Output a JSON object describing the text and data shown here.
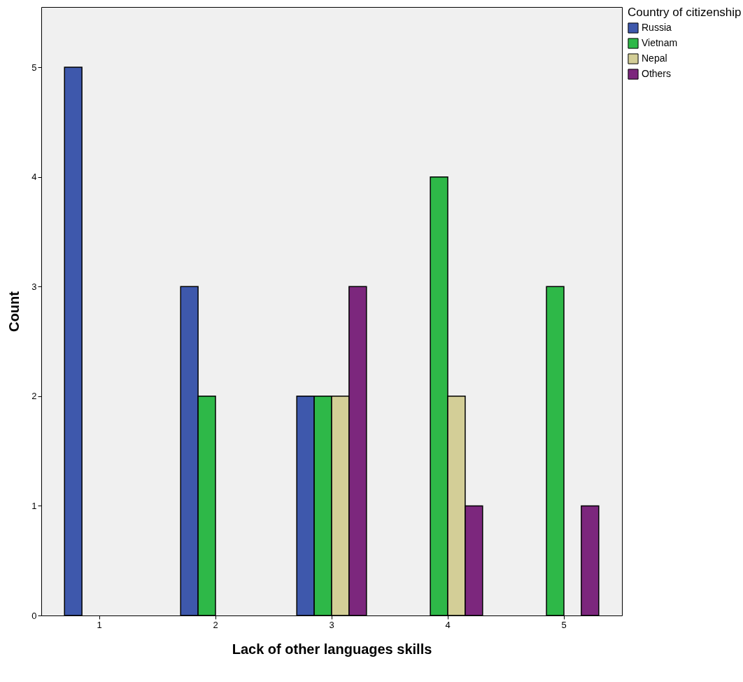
{
  "chart_data": {
    "type": "bar",
    "xlabel": "Lack of other languages skills",
    "ylabel": "Count",
    "legend_title": "Country of citizenship",
    "legend": "top right",
    "grid": false,
    "categories": [
      "1",
      "2",
      "3",
      "4",
      "5"
    ],
    "ylim": [
      0,
      5.55
    ],
    "yticks": [
      0,
      1,
      2,
      3,
      4,
      5
    ],
    "series": [
      {
        "name": "Russia",
        "color": "#3e58ac",
        "values": [
          5,
          3,
          2,
          null,
          null
        ]
      },
      {
        "name": "Vietnam",
        "color": "#2eb848",
        "values": [
          null,
          2,
          2,
          4,
          3
        ]
      },
      {
        "name": "Nepal",
        "color": "#d3ce97",
        "values": [
          null,
          null,
          2,
          2,
          null
        ]
      },
      {
        "name": "Others",
        "color": "#7c277d",
        "values": [
          null,
          null,
          3,
          1,
          1
        ]
      }
    ]
  }
}
